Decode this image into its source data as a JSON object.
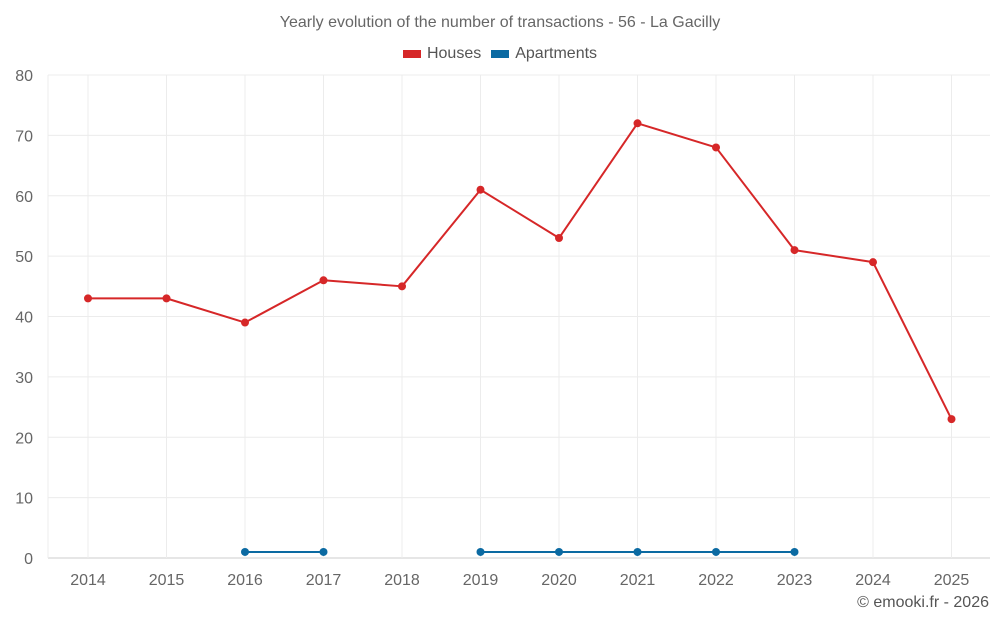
{
  "chart_data": {
    "type": "line",
    "title": "Yearly evolution of the number of transactions - 56 - La Gacilly",
    "xlabel": "",
    "ylabel": "",
    "categories": [
      "2014",
      "2015",
      "2016",
      "2017",
      "2018",
      "2019",
      "2020",
      "2021",
      "2022",
      "2023",
      "2024",
      "2025"
    ],
    "ylim": [
      0,
      80
    ],
    "yticks": [
      0,
      10,
      20,
      30,
      40,
      50,
      60,
      70,
      80
    ],
    "grid": true,
    "legend_position": "top-center",
    "series": [
      {
        "name": "Houses",
        "color": "#d62728",
        "values": [
          43,
          43,
          39,
          46,
          45,
          61,
          53,
          72,
          68,
          51,
          49,
          23
        ]
      },
      {
        "name": "Apartments",
        "color": "#0b6aa2",
        "values": [
          null,
          null,
          1,
          1,
          null,
          1,
          1,
          1,
          1,
          1,
          null,
          null
        ]
      }
    ]
  },
  "credit": "© emooki.fr - 2026"
}
